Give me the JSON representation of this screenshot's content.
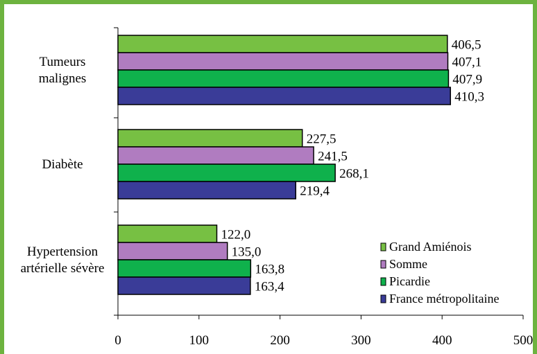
{
  "chart_data": {
    "type": "bar",
    "orientation": "horizontal",
    "title": "",
    "xlabel": "",
    "ylabel": "",
    "categories": [
      "Tumeurs\nmalignes",
      "Diabète",
      "Hypertension\nartérielle sévère"
    ],
    "series": [
      {
        "name": "Grand Amiénois",
        "values": [
          406.5,
          227.5,
          122.0
        ],
        "labels": [
          "406,5",
          "227,5",
          "122,0"
        ],
        "color": "#77c043"
      },
      {
        "name": "Somme",
        "values": [
          407.1,
          241.5,
          135.0
        ],
        "labels": [
          "407,1",
          "241,5",
          "135,0"
        ],
        "color": "#b07cc0"
      },
      {
        "name": "Picardie",
        "values": [
          407.9,
          268.1,
          163.8
        ],
        "labels": [
          "407,9",
          "268,1",
          "163,8"
        ],
        "color": "#0fb14c"
      },
      {
        "name": "France métropolitaine",
        "values": [
          410.3,
          219.4,
          163.4
        ],
        "labels": [
          "410,3",
          "219,4",
          "163,4"
        ],
        "color": "#3a3c98"
      }
    ],
    "xlim": [
      0,
      500
    ],
    "xticks": [
      0,
      100,
      200,
      300,
      400,
      500
    ],
    "grid": false,
    "legend_position": "bottom-right"
  }
}
